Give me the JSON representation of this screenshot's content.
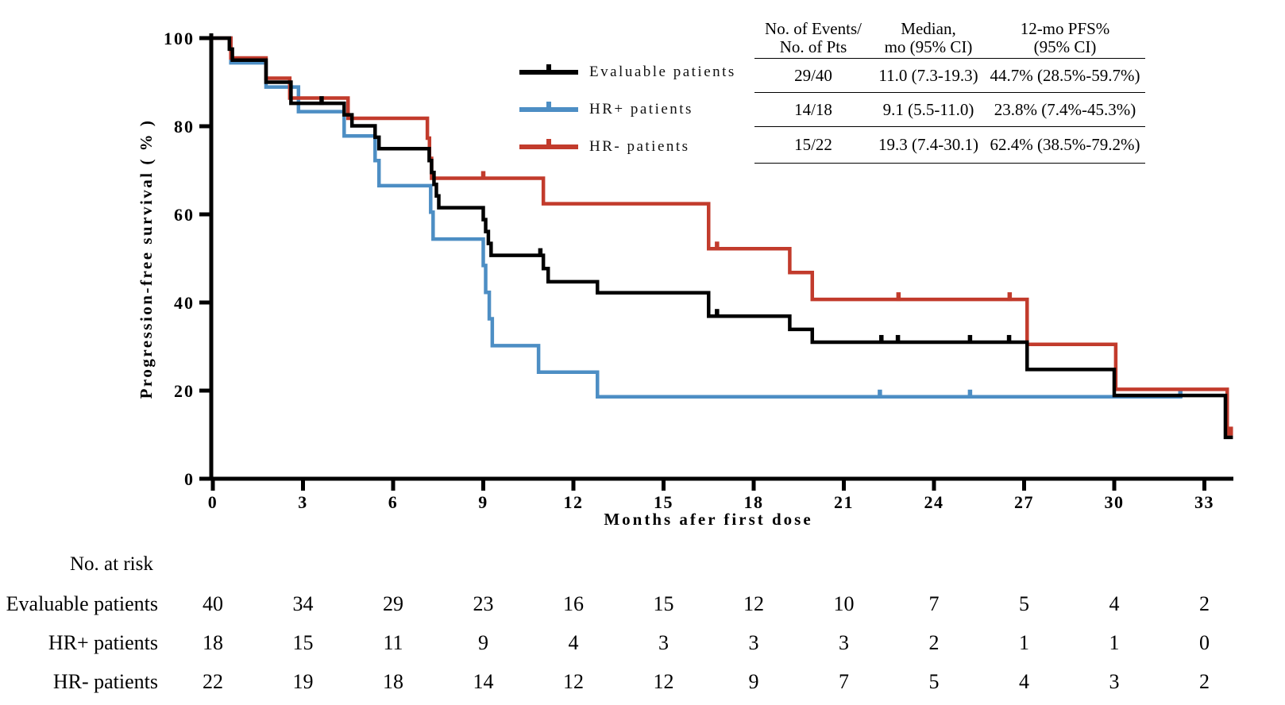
{
  "figure": {
    "background": "#ffffff"
  },
  "legend": {
    "items": [
      {
        "label": "Evaluable patients"
      },
      {
        "label": "HR+ patients"
      },
      {
        "label": "HR- patients"
      }
    ]
  },
  "stats_table": {
    "headers": [
      {
        "line1": "No. of Events/",
        "line2": "No. of Pts"
      },
      {
        "line1": "Median,",
        "line2": "mo (95% CI)"
      },
      {
        "line1": "12-mo PFS%",
        "line2": "(95% CI)"
      }
    ],
    "rows": [
      {
        "events": "29/40",
        "median": "11.0 (7.3-19.3)",
        "pfs12": "44.7% (28.5%-59.7%)"
      },
      {
        "events": "14/18",
        "median": "9.1 (5.5-11.0)",
        "pfs12": "23.8% (7.4%-45.3%)"
      },
      {
        "events": "15/22",
        "median": "19.3 (7.4-30.1)",
        "pfs12": "62.4% (38.5%-79.2%)"
      }
    ]
  },
  "risk_table": {
    "title": "No. at risk",
    "rows": [
      {
        "label": "Evaluable patients",
        "values": [
          "40",
          "34",
          "29",
          "23",
          "16",
          "15",
          "12",
          "10",
          "7",
          "5",
          "4",
          "2"
        ]
      },
      {
        "label": "HR+ patients",
        "values": [
          "18",
          "15",
          "11",
          "9",
          "4",
          "3",
          "3",
          "3",
          "2",
          "1",
          "1",
          "0"
        ]
      },
      {
        "label": "HR- patients",
        "values": [
          "22",
          "19",
          "18",
          "14",
          "12",
          "12",
          "9",
          "7",
          "5",
          "4",
          "3",
          "2"
        ]
      }
    ]
  },
  "chart_data": {
    "type": "line",
    "subtype": "kaplan-meier-step",
    "title": "",
    "xlabel": "Months afer first dose",
    "ylabel": "Progression-free survival ( % )",
    "xlim": [
      0,
      34.5
    ],
    "ylim": [
      0,
      100
    ],
    "x_ticks": [
      0,
      3,
      6,
      9,
      12,
      15,
      18,
      21,
      24,
      27,
      30,
      33
    ],
    "y_ticks": [
      0,
      20,
      40,
      60,
      80,
      100
    ],
    "grid": false,
    "legend_position": "top-center-left-of-table",
    "series": [
      {
        "name": "Evaluable patients",
        "color": "#000000",
        "events_over_pts": "29/40",
        "median_mo": "11.0 (7.3-19.3)",
        "pfs_12mo": "44.7% (28.5%-59.7%)",
        "steps": [
          [
            0,
            100
          ],
          [
            0.55,
            97.5
          ],
          [
            0.65,
            95
          ],
          [
            1.77,
            90
          ],
          [
            2.6,
            85.2
          ],
          [
            4.37,
            82.6
          ],
          [
            4.63,
            80.1
          ],
          [
            5.4,
            77.5
          ],
          [
            5.53,
            74.9
          ],
          [
            7.2,
            72.2
          ],
          [
            7.28,
            69.5
          ],
          [
            7.36,
            66.8
          ],
          [
            7.44,
            64.2
          ],
          [
            7.52,
            61.5
          ],
          [
            9.0,
            58.8
          ],
          [
            9.08,
            56.1
          ],
          [
            9.17,
            53.4
          ],
          [
            9.26,
            50.7
          ],
          [
            11.0,
            47.7
          ],
          [
            11.16,
            44.7
          ],
          [
            12.8,
            42.2
          ],
          [
            16.5,
            36.9
          ],
          [
            19.2,
            33.9
          ],
          [
            19.95,
            31.0
          ],
          [
            27.1,
            24.8
          ],
          [
            30.0,
            18.9
          ],
          [
            33.7,
            9.4
          ]
        ],
        "end_month": 33.95,
        "censors": [
          [
            3.62,
            85.2
          ],
          [
            10.9,
            50.7
          ],
          [
            16.78,
            36.9
          ],
          [
            22.25,
            31.0
          ],
          [
            22.8,
            31.0
          ],
          [
            25.2,
            31.0
          ],
          [
            26.5,
            31.0
          ]
        ]
      },
      {
        "name": "HR+ patients",
        "color": "#4D8EC4",
        "events_over_pts": "14/18",
        "median_mo": "9.1 (5.5-11.0)",
        "pfs_12mo": "23.8% (7.4%-45.3%)",
        "steps": [
          [
            0,
            100
          ],
          [
            0.6,
            94.4
          ],
          [
            1.77,
            88.9
          ],
          [
            2.85,
            83.3
          ],
          [
            4.37,
            77.8
          ],
          [
            5.4,
            72.2
          ],
          [
            5.53,
            66.5
          ],
          [
            7.25,
            60.5
          ],
          [
            7.33,
            54.4
          ],
          [
            9.0,
            48.4
          ],
          [
            9.08,
            42.3
          ],
          [
            9.2,
            36.3
          ],
          [
            9.3,
            30.2
          ],
          [
            10.84,
            24.2
          ],
          [
            12.8,
            18.6
          ]
        ],
        "end_month": 32.25,
        "censors": [
          [
            22.2,
            18.6
          ],
          [
            25.2,
            18.6
          ],
          [
            32.2,
            18.6
          ]
        ]
      },
      {
        "name": "HR- patients",
        "color": "#C23B2C",
        "events_over_pts": "15/22",
        "median_mo": "19.3 (7.4-30.1)",
        "pfs_12mo": "62.4% (38.5%-79.2%)",
        "steps": [
          [
            0,
            100
          ],
          [
            0.6,
            95.5
          ],
          [
            1.77,
            90.9
          ],
          [
            2.56,
            86.4
          ],
          [
            4.5,
            81.8
          ],
          [
            7.14,
            77.3
          ],
          [
            7.21,
            72.7
          ],
          [
            7.28,
            68.2
          ],
          [
            11.0,
            62.4
          ],
          [
            16.5,
            52.2
          ],
          [
            19.2,
            46.8
          ],
          [
            19.95,
            40.7
          ],
          [
            27.1,
            30.5
          ],
          [
            30.05,
            20.3
          ],
          [
            33.76,
            10.2
          ]
        ],
        "end_month": 33.95,
        "censors": [
          [
            9.0,
            68.2
          ],
          [
            16.78,
            52.2
          ],
          [
            22.82,
            40.7
          ],
          [
            26.52,
            40.7
          ],
          [
            33.88,
            10.2
          ]
        ]
      }
    ]
  }
}
